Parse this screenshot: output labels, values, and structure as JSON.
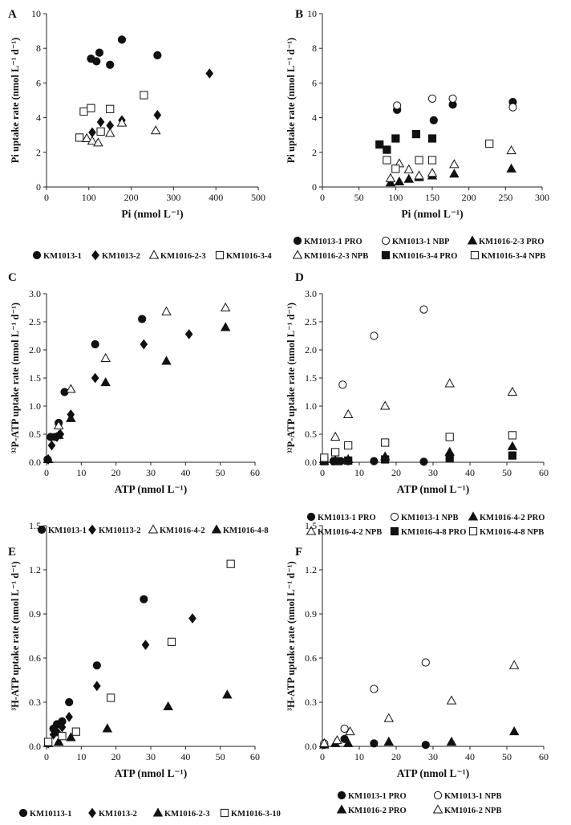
{
  "chart_data": [
    {
      "type": "scatter",
      "panel": "A",
      "xlabel": "Pi (nmol L⁻¹)",
      "ylabel": "Pi uptake rate (nmol L⁻¹ d⁻¹)",
      "xlim": [
        0,
        500
      ],
      "ylim": [
        0,
        10
      ],
      "xticks": [
        "0",
        "100",
        "200",
        "300",
        "400",
        "500"
      ],
      "yticks": [
        "0",
        "2",
        "4",
        "6",
        "8",
        "10"
      ],
      "series": [
        {
          "name": "KM1013-1",
          "marker": "circle",
          "fill": "#111111",
          "x": [
            105,
            118,
            125,
            150,
            178,
            262
          ],
          "y": [
            7.4,
            7.25,
            7.75,
            7.05,
            8.5,
            7.6
          ]
        },
        {
          "name": "KM1013-2",
          "marker": "diamond",
          "fill": "#111111",
          "x": [
            108,
            128,
            150,
            178,
            262,
            385
          ],
          "y": [
            3.15,
            3.75,
            3.55,
            3.85,
            4.15,
            6.55
          ]
        },
        {
          "name": "KM1016-2-3",
          "marker": "triangle",
          "fill": "#ffffff",
          "x": [
            95,
            108,
            122,
            150,
            178,
            258
          ],
          "y": [
            2.8,
            2.65,
            2.55,
            3.1,
            3.7,
            3.25
          ]
        },
        {
          "name": "KM1016-3-4",
          "marker": "square",
          "fill": "#ffffff",
          "x": [
            78,
            88,
            105,
            128,
            150,
            230
          ],
          "y": [
            2.85,
            4.35,
            4.55,
            3.2,
            4.5,
            5.3
          ]
        }
      ]
    },
    {
      "type": "scatter",
      "panel": "B",
      "xlabel": "Pi (nmol L⁻¹)",
      "ylabel": "Pi uptake rate (nmol L⁻¹ d⁻¹)",
      "xlim": [
        0,
        300
      ],
      "ylim": [
        0,
        10
      ],
      "xticks": [
        "0",
        "50",
        "100",
        "150",
        "200",
        "250",
        "300"
      ],
      "yticks": [
        "0",
        "2",
        "4",
        "6",
        "8",
        "10"
      ],
      "series": [
        {
          "name": "KM1013-1 PRO",
          "marker": "circle",
          "fill": "#111111",
          "x": [
            102,
            152,
            178,
            260
          ],
          "y": [
            4.45,
            3.85,
            4.75,
            4.9
          ]
        },
        {
          "name": "KM1013-1 NBP",
          "marker": "circle",
          "fill": "#ffffff",
          "x": [
            102,
            150,
            178,
            260
          ],
          "y": [
            4.7,
            5.1,
            5.1,
            4.6
          ]
        },
        {
          "name": "KM1016-2-3 PRO",
          "marker": "triangle",
          "fill": "#111111",
          "x": [
            93,
            105,
            118,
            132,
            150,
            180,
            258
          ],
          "y": [
            0.25,
            0.3,
            0.45,
            0.55,
            0.65,
            0.75,
            1.05
          ]
        },
        {
          "name": "KM1016-2-3 NPB",
          "marker": "triangle",
          "fill": "#ffffff",
          "x": [
            93,
            105,
            118,
            132,
            150,
            180,
            258
          ],
          "y": [
            0.5,
            1.35,
            1.0,
            0.65,
            0.8,
            1.3,
            2.1
          ]
        },
        {
          "name": "KM1016-3-4 PRO",
          "marker": "square",
          "fill": "#111111",
          "x": [
            78,
            88,
            100,
            128,
            150
          ],
          "y": [
            2.45,
            2.15,
            2.8,
            3.05,
            2.8
          ]
        },
        {
          "name": "KM1016-3-4 NPB",
          "marker": "square",
          "fill": "#ffffff",
          "x": [
            88,
            100,
            132,
            150,
            228
          ],
          "y": [
            1.55,
            1.05,
            1.55,
            1.55,
            2.5
          ]
        }
      ]
    },
    {
      "type": "scatter",
      "panel": "C",
      "xlabel": "ATP (nmol L⁻¹)",
      "ylabel": "³²P-ATP uptake rate (nmol L⁻¹ d⁻¹)",
      "xlim": [
        0,
        60
      ],
      "ylim": [
        0,
        3.0
      ],
      "xticks": [
        "0",
        "10",
        "20",
        "30",
        "40",
        "50",
        "60"
      ],
      "yticks": [
        "0.0",
        "0.5",
        "1.0",
        "1.5",
        "2.0",
        "2.5",
        "3.0"
      ],
      "series": [
        {
          "name": "KM1013-1",
          "marker": "circle",
          "fill": "#111111",
          "x": [
            0.3,
            1.2,
            2.5,
            3.5,
            5.2,
            14,
            27.5
          ],
          "y": [
            0.05,
            0.45,
            0.45,
            0.7,
            1.25,
            2.1,
            2.55
          ]
        },
        {
          "name": "KM10113-2",
          "marker": "diamond",
          "fill": "#111111",
          "x": [
            0.5,
            1.5,
            3,
            4,
            7,
            14,
            28,
            41
          ],
          "y": [
            0.05,
            0.3,
            0.45,
            0.5,
            0.85,
            1.5,
            2.1,
            2.28
          ]
        },
        {
          "name": "KM1016-4-2",
          "marker": "triangle",
          "fill": "#ffffff",
          "x": [
            0.5,
            3.5,
            7,
            17,
            34.5,
            51.5
          ],
          "y": [
            0.05,
            0.65,
            1.3,
            1.85,
            2.68,
            2.75
          ]
        },
        {
          "name": "KM1016-4-8",
          "marker": "triangle",
          "fill": "#111111",
          "x": [
            0.5,
            3.5,
            7,
            17,
            34.5,
            51.5
          ],
          "y": [
            0.05,
            0.48,
            0.78,
            1.42,
            1.8,
            2.4
          ]
        }
      ]
    },
    {
      "type": "scatter",
      "panel": "D",
      "xlabel": "ATP (nmol L⁻¹)",
      "ylabel": "³²P-ATP uptake rate (nmol L⁻¹ d⁻¹)",
      "xlim": [
        0,
        60
      ],
      "ylim": [
        0,
        3.0
      ],
      "xticks": [
        "0",
        "10",
        "20",
        "30",
        "40",
        "50",
        "60"
      ],
      "yticks": [
        "0.0",
        "0.5",
        "1.0",
        "1.5",
        "2.0",
        "2.5",
        "3.0"
      ],
      "series": [
        {
          "name": "KM1013-1 PRO",
          "marker": "circle",
          "fill": "#111111",
          "x": [
            0.5,
            3,
            5,
            7,
            14,
            27.5
          ],
          "y": [
            0.02,
            0.02,
            0.02,
            0.02,
            0.02,
            0.01
          ]
        },
        {
          "name": "KM1013-1 NPB",
          "marker": "circle",
          "fill": "#ffffff",
          "x": [
            0.5,
            5.5,
            14,
            27.5
          ],
          "y": [
            0.05,
            1.38,
            2.25,
            2.72
          ]
        },
        {
          "name": "KM1016-4-2 PRO",
          "marker": "triangle",
          "fill": "#111111",
          "x": [
            0.5,
            3.5,
            7,
            17,
            34.5,
            51.5
          ],
          "y": [
            0.02,
            0.03,
            0.05,
            0.1,
            0.18,
            0.28
          ]
        },
        {
          "name": "KM1016-4-2 NPB",
          "marker": "triangle",
          "fill": "#ffffff",
          "x": [
            0.5,
            3.5,
            7,
            17,
            34.5,
            51.5
          ],
          "y": [
            0.05,
            0.45,
            0.85,
            1.0,
            1.4,
            1.25
          ]
        },
        {
          "name": "KM1016-4-8 PRO",
          "marker": "square",
          "fill": "#111111",
          "x": [
            0.5,
            3.5,
            7,
            17,
            34.5,
            51.5
          ],
          "y": [
            0.02,
            0.02,
            0.03,
            0.05,
            0.08,
            0.12
          ]
        },
        {
          "name": "KM1016-4-8 NPB",
          "marker": "square",
          "fill": "#ffffff",
          "x": [
            0.5,
            3.5,
            7,
            17,
            34.5,
            51.5
          ],
          "y": [
            0.08,
            0.18,
            0.3,
            0.35,
            0.45,
            0.48
          ]
        }
      ]
    },
    {
      "type": "scatter",
      "panel": "E",
      "xlabel": "ATP (nmol L⁻¹)",
      "ylabel": "³H-ATP uptake rate (nmol L⁻¹ d⁻¹)",
      "xlim": [
        0,
        60
      ],
      "ylim": [
        0,
        1.5
      ],
      "xticks": [
        "0",
        "10",
        "20",
        "30",
        "40",
        "50",
        "60"
      ],
      "yticks": [
        "0.0",
        "0.3",
        "0.6",
        "0.9",
        "1.2",
        "1.5"
      ],
      "series": [
        {
          "name": "KM10113-1",
          "marker": "circle",
          "fill": "#111111",
          "x": [
            0.5,
            2,
            3,
            4.5,
            6.5,
            14.5,
            28
          ],
          "y": [
            0.02,
            0.12,
            0.15,
            0.17,
            0.3,
            0.55,
            1.0
          ]
        },
        {
          "name": "KM1013-2",
          "marker": "diamond",
          "fill": "#111111",
          "x": [
            0.5,
            2,
            3,
            4.5,
            6.5,
            14.5,
            28.5,
            42
          ],
          "y": [
            0.02,
            0.08,
            0.1,
            0.13,
            0.2,
            0.41,
            0.69,
            0.87
          ]
        },
        {
          "name": "KM1016-2-3",
          "marker": "triangle",
          "fill": "#111111",
          "x": [
            0.5,
            3.5,
            7,
            17.5,
            35,
            52
          ],
          "y": [
            0.02,
            0.03,
            0.06,
            0.12,
            0.27,
            0.35
          ]
        },
        {
          "name": "KM1016-3-10",
          "marker": "square",
          "fill": "#ffffff",
          "x": [
            0.5,
            4.5,
            8.5,
            18.5,
            36,
            53
          ],
          "y": [
            0.03,
            0.07,
            0.1,
            0.33,
            0.71,
            1.24
          ]
        }
      ]
    },
    {
      "type": "scatter",
      "panel": "F",
      "xlabel": "ATP (nmol L⁻¹)",
      "ylabel": "³H-ATP uptake rate (nmol L⁻¹ d⁻¹)",
      "xlim": [
        0,
        60
      ],
      "ylim": [
        0,
        1.5
      ],
      "xticks": [
        "0",
        "10",
        "20",
        "30",
        "40",
        "50",
        "60"
      ],
      "yticks": [
        "0.0",
        "0.3",
        "0.6",
        "0.9",
        "1.2",
        "1.5"
      ],
      "series": [
        {
          "name": "KM1013-1 PRO",
          "marker": "circle",
          "fill": "#111111",
          "x": [
            0.5,
            6,
            14,
            28
          ],
          "y": [
            0.01,
            0.05,
            0.02,
            0.01
          ]
        },
        {
          "name": "KM1013-1 NPB",
          "marker": "circle",
          "fill": "#ffffff",
          "x": [
            0.5,
            6,
            14,
            28
          ],
          "y": [
            0.02,
            0.12,
            0.39,
            0.57
          ]
        },
        {
          "name": "KM1016-2 PRO",
          "marker": "triangle",
          "fill": "#111111",
          "x": [
            0.5,
            3.5,
            7,
            18,
            35,
            52
          ],
          "y": [
            0.01,
            0.02,
            0.02,
            0.03,
            0.03,
            0.1
          ]
        },
        {
          "name": "KM1016-2 NPB",
          "marker": "triangle",
          "fill": "#ffffff",
          "x": [
            0.5,
            4,
            7.5,
            18,
            35,
            52
          ],
          "y": [
            0.02,
            0.04,
            0.1,
            0.19,
            0.31,
            0.55
          ]
        }
      ]
    }
  ]
}
